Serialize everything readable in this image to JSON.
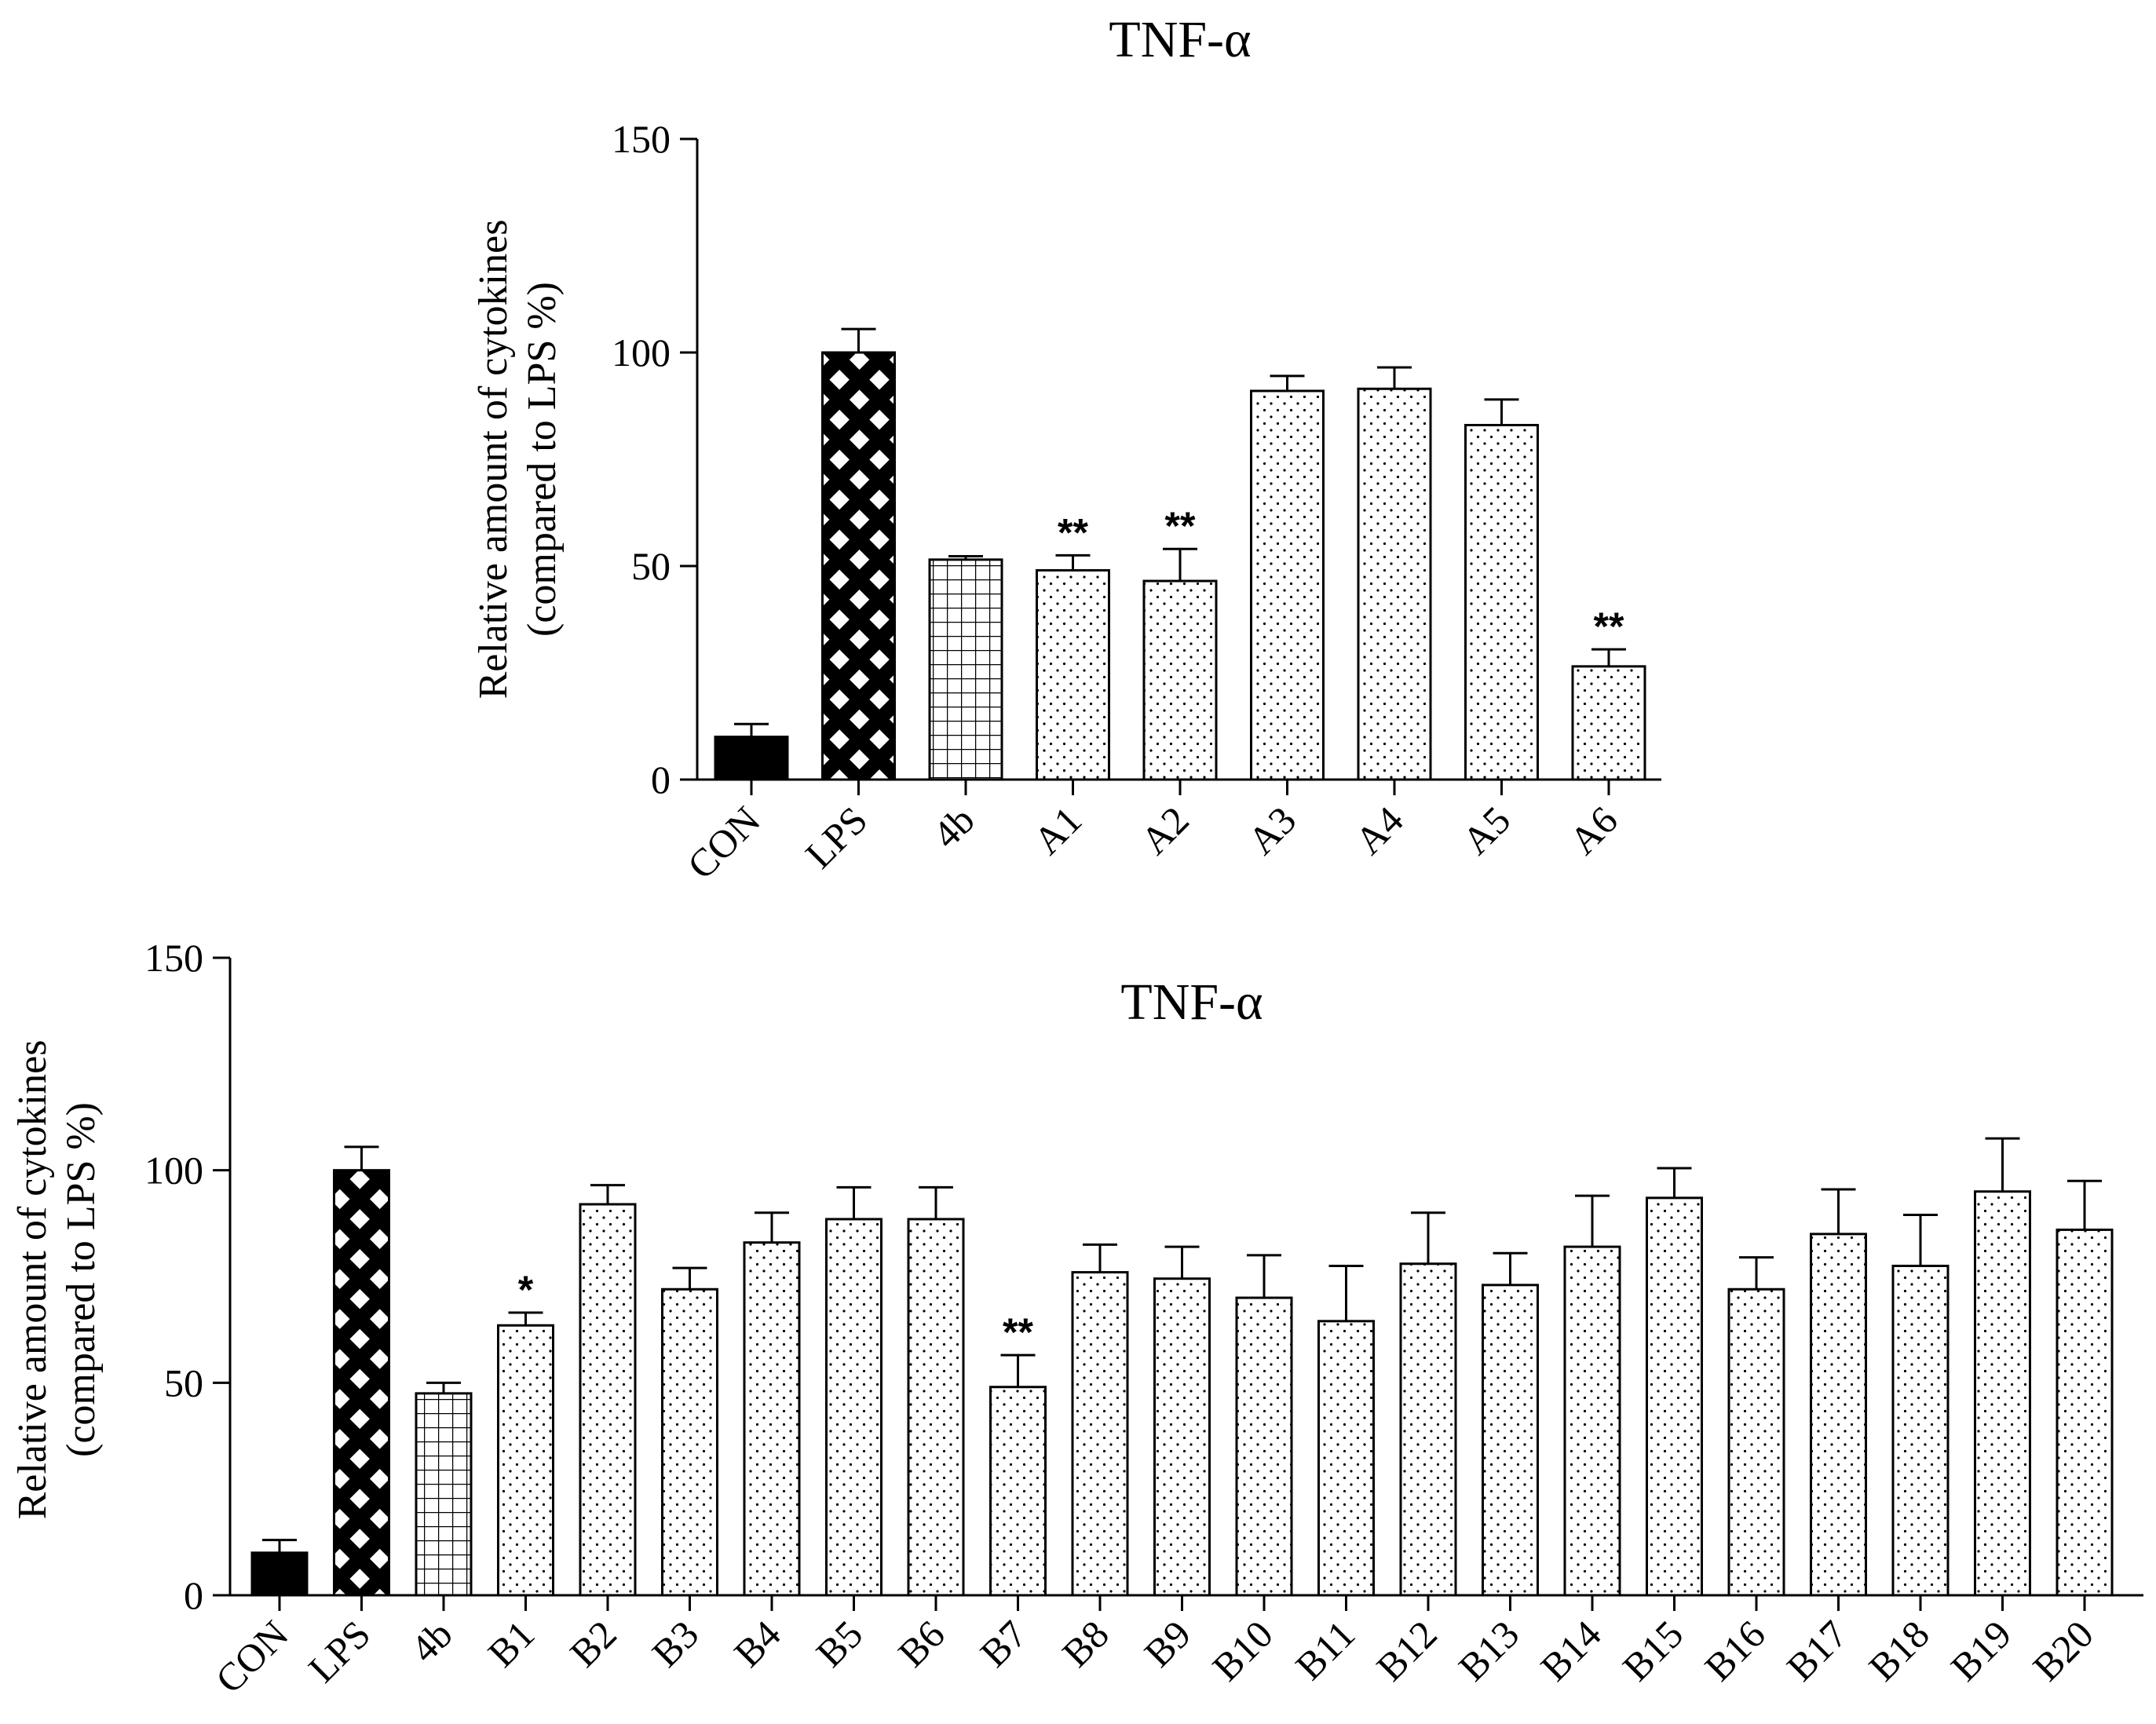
{
  "chart_data": [
    {
      "type": "bar",
      "title": "TNF-α",
      "ylabel_line1": "Relative amount of  cytokines",
      "ylabel_line2": "(compared to LPS %)",
      "xlabel": "",
      "ylim": [
        0,
        150
      ],
      "yticks": [
        "0",
        "50",
        "100",
        "150"
      ],
      "categories": [
        "CON",
        "LPS",
        "4b",
        "A1",
        "A2",
        "A3",
        "A4",
        "A5",
        "A6"
      ],
      "values": [
        10,
        100,
        51.5,
        49,
        46.5,
        91,
        91.5,
        83,
        26.5
      ],
      "errors": [
        3,
        5.5,
        0.8,
        3.5,
        7.5,
        3.5,
        5,
        6,
        4
      ],
      "fills": [
        "solid",
        "crosshatch",
        "grid",
        "dots",
        "dots",
        "dots",
        "dots",
        "dots",
        "dots"
      ],
      "significance": [
        "",
        "",
        "",
        "**",
        "**",
        "",
        "",
        "",
        "**"
      ]
    },
    {
      "type": "bar",
      "title": "TNF-α",
      "ylabel_line1": "Relative amount of  cytokines",
      "ylabel_line2": "(compared to LPS %)",
      "xlabel": "",
      "ylim": [
        0,
        150
      ],
      "yticks": [
        "0",
        "50",
        "100",
        "150"
      ],
      "categories": [
        "CON",
        "LPS",
        "4b",
        "B1",
        "B2",
        "B3",
        "B4",
        "B5",
        "B6",
        "B7",
        "B8",
        "B9",
        "B10",
        "B11",
        "B12",
        "B13",
        "B14",
        "B15",
        "B16",
        "B17",
        "B18",
        "B19",
        "B20"
      ],
      "values": [
        10,
        100,
        47.5,
        63.5,
        92,
        72,
        83,
        88.5,
        88.5,
        49,
        76,
        74.5,
        70,
        64.5,
        78,
        73,
        82,
        93.5,
        72,
        85,
        77.5,
        95,
        86
      ],
      "errors": [
        3,
        5.5,
        2.5,
        3,
        4.5,
        5,
        7,
        7.5,
        7.5,
        7.5,
        6.5,
        7.5,
        10,
        13,
        12,
        7.5,
        12,
        7,
        7.5,
        10.5,
        12,
        12.5,
        11.5
      ],
      "fills": [
        "solid",
        "crosshatch",
        "grid",
        "dots",
        "dots",
        "dots",
        "dots",
        "dots",
        "dots",
        "dots",
        "dots",
        "dots",
        "dots",
        "dots",
        "dots",
        "dots",
        "dots",
        "dots",
        "dots",
        "dots",
        "dots",
        "dots",
        "dots"
      ],
      "significance": [
        "",
        "",
        "",
        "*",
        "",
        "",
        "",
        "",
        "",
        "**",
        "",
        "",
        "",
        "",
        "",
        "",
        "",
        "",
        "",
        "",
        "",
        "",
        ""
      ]
    }
  ]
}
